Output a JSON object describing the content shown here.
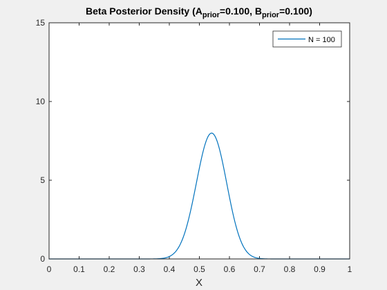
{
  "chart_data": {
    "type": "line",
    "title": {
      "lead": "Beta Posterior Density (A",
      "sub_a": "prior",
      "mid": "=0.100, B",
      "sub_b": "prior",
      "tail": "=0.100)"
    },
    "xlabel": "X",
    "ylabel": "",
    "xlim": [
      0,
      1
    ],
    "ylim": [
      0,
      15
    ],
    "x_ticks": [
      "0",
      "0.1",
      "0.2",
      "0.3",
      "0.4",
      "0.5",
      "0.6",
      "0.7",
      "0.8",
      "0.9",
      "1"
    ],
    "y_ticks": [
      "0",
      "5",
      "10",
      "15"
    ],
    "grid": false,
    "legend": {
      "position": "top-right",
      "entries": [
        "N = 100"
      ]
    },
    "series": [
      {
        "name": "N = 100",
        "color": "#0072bd",
        "distribution": "beta",
        "alpha": 54.1,
        "beta": 46.1,
        "peak_x": 0.54,
        "peak_y": 7.98
      }
    ]
  }
}
